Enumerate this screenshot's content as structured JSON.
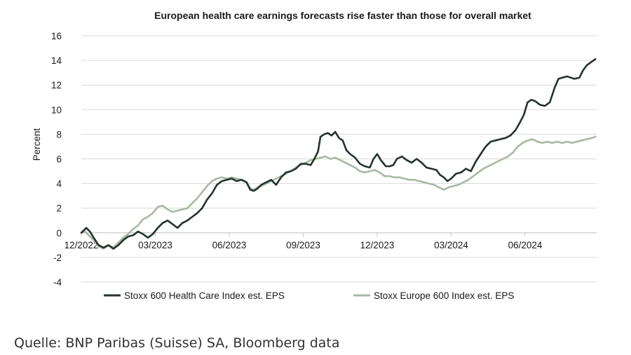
{
  "chart_data": {
    "type": "line",
    "title": "European health care earnings forecasts rise faster than those for overall market",
    "ylabel": "Percent",
    "xlabel": "",
    "ylim": [
      -4,
      16
    ],
    "yticks": [
      -4,
      -2,
      0,
      2,
      4,
      6,
      8,
      10,
      12,
      14,
      16
    ],
    "ytick_labels": [
      "-4",
      "-2",
      "0",
      "2",
      "4",
      "6",
      "8",
      "10",
      "12",
      "14",
      "16"
    ],
    "xticks": [
      0,
      3,
      6,
      9,
      12,
      15,
      18
    ],
    "xtick_labels": [
      "12/2022",
      "03/2023",
      "06/2023",
      "09/2023",
      "12/2023",
      "03/2024",
      "06/2024"
    ],
    "xlim": [
      0,
      20.9
    ],
    "x_unit": "months since Dec 2022",
    "grid": true,
    "legend_position": "bottom",
    "series": [
      {
        "name": "Stoxx 600 Health Care Index est. EPS",
        "color": "#25322d",
        "points": [
          [
            0.0,
            0.0
          ],
          [
            0.1,
            0.2
          ],
          [
            0.2,
            0.4
          ],
          [
            0.35,
            0.1
          ],
          [
            0.5,
            -0.4
          ],
          [
            0.7,
            -1.0
          ],
          [
            0.9,
            -1.2
          ],
          [
            1.1,
            -1.0
          ],
          [
            1.3,
            -1.3
          ],
          [
            1.5,
            -1.0
          ],
          [
            1.7,
            -0.6
          ],
          [
            1.9,
            -0.3
          ],
          [
            2.1,
            -0.2
          ],
          [
            2.3,
            0.1
          ],
          [
            2.5,
            -0.1
          ],
          [
            2.7,
            -0.4
          ],
          [
            2.9,
            -0.1
          ],
          [
            3.1,
            0.4
          ],
          [
            3.3,
            0.8
          ],
          [
            3.5,
            1.0
          ],
          [
            3.7,
            0.7
          ],
          [
            3.9,
            0.4
          ],
          [
            4.1,
            0.8
          ],
          [
            4.3,
            1.0
          ],
          [
            4.5,
            1.3
          ],
          [
            4.7,
            1.6
          ],
          [
            4.9,
            2.0
          ],
          [
            5.1,
            2.7
          ],
          [
            5.3,
            3.2
          ],
          [
            5.5,
            3.9
          ],
          [
            5.7,
            4.2
          ],
          [
            5.9,
            4.3
          ],
          [
            6.1,
            4.4
          ],
          [
            6.3,
            4.2
          ],
          [
            6.5,
            4.3
          ],
          [
            6.7,
            4.1
          ],
          [
            6.85,
            3.5
          ],
          [
            7.0,
            3.4
          ],
          [
            7.15,
            3.6
          ],
          [
            7.3,
            3.9
          ],
          [
            7.5,
            4.1
          ],
          [
            7.7,
            4.3
          ],
          [
            7.9,
            3.9
          ],
          [
            8.1,
            4.5
          ],
          [
            8.3,
            4.9
          ],
          [
            8.5,
            5.0
          ],
          [
            8.7,
            5.2
          ],
          [
            8.9,
            5.6
          ],
          [
            9.1,
            5.6
          ],
          [
            9.3,
            5.5
          ],
          [
            9.45,
            6.0
          ],
          [
            9.6,
            6.6
          ],
          [
            9.7,
            7.8
          ],
          [
            9.85,
            8.0
          ],
          [
            10.0,
            8.1
          ],
          [
            10.15,
            7.9
          ],
          [
            10.3,
            8.2
          ],
          [
            10.45,
            7.7
          ],
          [
            10.6,
            7.5
          ],
          [
            10.75,
            6.7
          ],
          [
            10.9,
            6.4
          ],
          [
            11.1,
            6.1
          ],
          [
            11.3,
            5.6
          ],
          [
            11.5,
            5.4
          ],
          [
            11.7,
            5.3
          ],
          [
            11.85,
            6.0
          ],
          [
            12.0,
            6.4
          ],
          [
            12.15,
            5.9
          ],
          [
            12.35,
            5.4
          ],
          [
            12.5,
            5.4
          ],
          [
            12.65,
            5.5
          ],
          [
            12.8,
            6.0
          ],
          [
            13.0,
            6.2
          ],
          [
            13.2,
            5.9
          ],
          [
            13.4,
            5.7
          ],
          [
            13.6,
            6.0
          ],
          [
            13.8,
            5.7
          ],
          [
            14.0,
            5.3
          ],
          [
            14.2,
            5.2
          ],
          [
            14.4,
            5.1
          ],
          [
            14.55,
            4.7
          ],
          [
            14.7,
            4.5
          ],
          [
            14.85,
            4.2
          ],
          [
            15.0,
            4.4
          ],
          [
            15.2,
            4.8
          ],
          [
            15.4,
            4.9
          ],
          [
            15.6,
            5.2
          ],
          [
            15.8,
            5.0
          ],
          [
            16.0,
            5.8
          ],
          [
            16.2,
            6.4
          ],
          [
            16.4,
            7.0
          ],
          [
            16.6,
            7.4
          ],
          [
            16.8,
            7.5
          ],
          [
            17.0,
            7.6
          ],
          [
            17.2,
            7.7
          ],
          [
            17.4,
            7.9
          ],
          [
            17.6,
            8.3
          ],
          [
            17.8,
            9.0
          ],
          [
            17.95,
            9.6
          ],
          [
            18.1,
            10.6
          ],
          [
            18.25,
            10.8
          ],
          [
            18.4,
            10.7
          ],
          [
            18.6,
            10.4
          ],
          [
            18.8,
            10.3
          ],
          [
            19.0,
            10.6
          ],
          [
            19.2,
            11.8
          ],
          [
            19.35,
            12.5
          ],
          [
            19.5,
            12.6
          ],
          [
            19.7,
            12.7
          ],
          [
            19.85,
            12.6
          ],
          [
            20.0,
            12.5
          ],
          [
            20.2,
            12.6
          ],
          [
            20.35,
            13.2
          ],
          [
            20.5,
            13.6
          ],
          [
            20.7,
            13.9
          ],
          [
            20.85,
            14.1
          ]
        ]
      },
      {
        "name": "Stoxx Europe 600 Index est. EPS",
        "color": "#a9b8a5",
        "points": [
          [
            0.0,
            0.0
          ],
          [
            0.15,
            0.1
          ],
          [
            0.3,
            -0.2
          ],
          [
            0.5,
            -0.6
          ],
          [
            0.7,
            -1.1
          ],
          [
            0.9,
            -1.3
          ],
          [
            1.1,
            -1.0
          ],
          [
            1.3,
            -1.2
          ],
          [
            1.5,
            -0.8
          ],
          [
            1.7,
            -0.4
          ],
          [
            1.9,
            -0.1
          ],
          [
            2.1,
            0.3
          ],
          [
            2.3,
            0.6
          ],
          [
            2.5,
            1.1
          ],
          [
            2.7,
            1.3
          ],
          [
            2.9,
            1.6
          ],
          [
            3.1,
            2.1
          ],
          [
            3.3,
            2.2
          ],
          [
            3.5,
            1.9
          ],
          [
            3.7,
            1.7
          ],
          [
            3.9,
            1.8
          ],
          [
            4.1,
            1.9
          ],
          [
            4.3,
            2.0
          ],
          [
            4.5,
            2.4
          ],
          [
            4.7,
            2.8
          ],
          [
            4.9,
            3.3
          ],
          [
            5.1,
            3.8
          ],
          [
            5.3,
            4.2
          ],
          [
            5.5,
            4.4
          ],
          [
            5.7,
            4.5
          ],
          [
            5.9,
            4.4
          ],
          [
            6.1,
            4.5
          ],
          [
            6.3,
            4.4
          ],
          [
            6.5,
            4.3
          ],
          [
            6.7,
            4.1
          ],
          [
            6.85,
            3.6
          ],
          [
            7.0,
            3.5
          ],
          [
            7.15,
            3.7
          ],
          [
            7.3,
            3.8
          ],
          [
            7.5,
            4.0
          ],
          [
            7.7,
            4.2
          ],
          [
            7.9,
            4.4
          ],
          [
            8.1,
            4.6
          ],
          [
            8.3,
            4.8
          ],
          [
            8.5,
            5.0
          ],
          [
            8.7,
            5.3
          ],
          [
            8.9,
            5.5
          ],
          [
            9.1,
            5.7
          ],
          [
            9.3,
            5.9
          ],
          [
            9.5,
            6.0
          ],
          [
            9.7,
            6.1
          ],
          [
            9.9,
            6.2
          ],
          [
            10.1,
            6.0
          ],
          [
            10.3,
            6.1
          ],
          [
            10.5,
            5.9
          ],
          [
            10.7,
            5.7
          ],
          [
            10.9,
            5.5
          ],
          [
            11.1,
            5.3
          ],
          [
            11.3,
            5.0
          ],
          [
            11.5,
            4.9
          ],
          [
            11.7,
            5.0
          ],
          [
            11.9,
            5.1
          ],
          [
            12.1,
            4.9
          ],
          [
            12.3,
            4.6
          ],
          [
            12.5,
            4.6
          ],
          [
            12.7,
            4.5
          ],
          [
            12.9,
            4.5
          ],
          [
            13.1,
            4.4
          ],
          [
            13.3,
            4.3
          ],
          [
            13.5,
            4.3
          ],
          [
            13.7,
            4.2
          ],
          [
            13.9,
            4.1
          ],
          [
            14.1,
            4.0
          ],
          [
            14.3,
            3.9
          ],
          [
            14.5,
            3.7
          ],
          [
            14.7,
            3.5
          ],
          [
            14.9,
            3.7
          ],
          [
            15.1,
            3.8
          ],
          [
            15.3,
            3.9
          ],
          [
            15.5,
            4.1
          ],
          [
            15.7,
            4.3
          ],
          [
            15.9,
            4.6
          ],
          [
            16.1,
            4.9
          ],
          [
            16.3,
            5.2
          ],
          [
            16.5,
            5.4
          ],
          [
            16.7,
            5.6
          ],
          [
            16.9,
            5.8
          ],
          [
            17.1,
            6.0
          ],
          [
            17.3,
            6.2
          ],
          [
            17.5,
            6.5
          ],
          [
            17.7,
            7.0
          ],
          [
            17.9,
            7.3
          ],
          [
            18.1,
            7.5
          ],
          [
            18.3,
            7.6
          ],
          [
            18.5,
            7.4
          ],
          [
            18.7,
            7.3
          ],
          [
            18.9,
            7.4
          ],
          [
            19.1,
            7.3
          ],
          [
            19.3,
            7.4
          ],
          [
            19.5,
            7.3
          ],
          [
            19.7,
            7.4
          ],
          [
            19.9,
            7.3
          ],
          [
            20.1,
            7.4
          ],
          [
            20.3,
            7.5
          ],
          [
            20.5,
            7.6
          ],
          [
            20.7,
            7.7
          ],
          [
            20.85,
            7.8
          ]
        ]
      }
    ]
  },
  "source": {
    "text": "Quelle: BNP Paribas (Suisse) SA, Bloomberg data"
  }
}
